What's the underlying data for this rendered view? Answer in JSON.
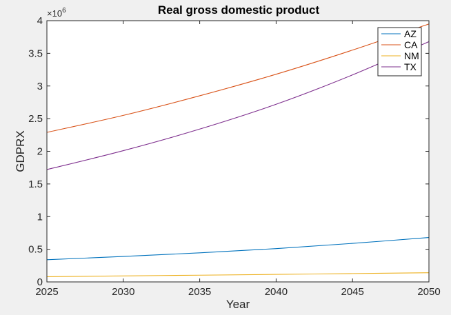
{
  "figure": {
    "background": "#f0f0f0"
  },
  "chart_data": {
    "type": "line",
    "title": "Real gross domestic product",
    "xlabel": "Year",
    "ylabel": "GDPRX",
    "xlim": [
      2025,
      2050
    ],
    "ylim": [
      0,
      4000000
    ],
    "x_ticks": [
      2025,
      2030,
      2035,
      2040,
      2045,
      2050
    ],
    "y_ticks": [
      0,
      500000,
      1000000,
      1500000,
      2000000,
      2500000,
      3000000,
      3500000,
      4000000
    ],
    "y_tick_labels": [
      "0",
      "0.5",
      "1",
      "1.5",
      "2",
      "2.5",
      "3",
      "3.5",
      "4"
    ],
    "y_exponent_base": "×10",
    "y_exponent_power": "6",
    "grid": false,
    "legend_position": "top-right",
    "x": [
      2025,
      2030,
      2035,
      2040,
      2045,
      2050
    ],
    "series": [
      {
        "name": "AZ",
        "color": "#0072bd",
        "values": [
          340000,
          390000,
          445000,
          510000,
          590000,
          680000
        ]
      },
      {
        "name": "CA",
        "color": "#d95319",
        "values": [
          2290000,
          2550000,
          2850000,
          3180000,
          3550000,
          3950000
        ]
      },
      {
        "name": "NM",
        "color": "#edb120",
        "values": [
          80000,
          92000,
          103000,
          115000,
          128000,
          140000
        ]
      },
      {
        "name": "TX",
        "color": "#7e2f8e",
        "values": [
          1720000,
          2010000,
          2340000,
          2720000,
          3170000,
          3680000
        ]
      }
    ]
  }
}
